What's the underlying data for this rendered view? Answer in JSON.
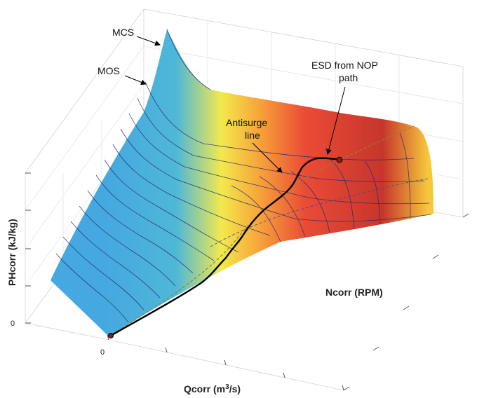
{
  "chart_data": {
    "type": "surface",
    "title": "",
    "xlabel": "Qcorr (m",
    "xlabel_sup": "3",
    "xlabel_tail": "/s)",
    "ylabel": "Ncorr (RPM)",
    "zlabel": "PHcorr (kJ/kg)",
    "tick_labels": {
      "x_origin": "0",
      "z_origin": "0"
    },
    "colormap": [
      "#45a8e0",
      "#4fb7d8",
      "#f3e94c",
      "#f7a23a",
      "#ea4b36",
      "#c7352b",
      "#f5c83c"
    ],
    "mesh_line_color": "#1d2d6e",
    "antisurge_line_color": "#8a8a2a",
    "path_color": "#000000",
    "path_marker_color": "#8b1a1a",
    "annotations": [
      {
        "id": "mcs",
        "text": "MCS"
      },
      {
        "id": "mos",
        "text": "MOS"
      },
      {
        "id": "antisurge",
        "lines": [
          "Antisurge",
          "line"
        ]
      },
      {
        "id": "esd",
        "lines": [
          "ESD from NOP",
          "path"
        ]
      }
    ]
  }
}
